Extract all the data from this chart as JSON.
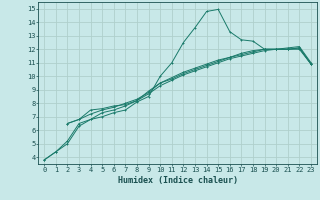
{
  "xlabel": "Humidex (Indice chaleur)",
  "ylabel": "",
  "bg_color": "#c8e8e8",
  "grid_color": "#afd0cc",
  "line_color": "#1a7a6a",
  "xlim": [
    -0.5,
    23.5
  ],
  "ylim": [
    3.5,
    15.5
  ],
  "xticks": [
    0,
    1,
    2,
    3,
    4,
    5,
    6,
    7,
    8,
    9,
    10,
    11,
    12,
    13,
    14,
    15,
    16,
    17,
    18,
    19,
    20,
    21,
    22,
    23
  ],
  "yticks": [
    4,
    5,
    6,
    7,
    8,
    9,
    10,
    11,
    12,
    13,
    14,
    15
  ],
  "line1_x": [
    0,
    1,
    2,
    3,
    4,
    5,
    6,
    7,
    8,
    9,
    10,
    11,
    12,
    13,
    14,
    15,
    16,
    17,
    18,
    19,
    20,
    21,
    22,
    23
  ],
  "line1_y": [
    3.8,
    4.4,
    5.2,
    6.5,
    6.8,
    7.0,
    7.3,
    7.5,
    8.1,
    8.5,
    10.0,
    11.0,
    12.5,
    13.6,
    14.8,
    14.95,
    13.3,
    12.7,
    12.6,
    12.0,
    12.0,
    12.1,
    12.2,
    11.0
  ],
  "line2_x": [
    0,
    1,
    2,
    3,
    4,
    5,
    6,
    7,
    8,
    9,
    10,
    11,
    12,
    13,
    14,
    15,
    16,
    17,
    18,
    19,
    20,
    21,
    22,
    23
  ],
  "line2_y": [
    3.8,
    4.4,
    5.0,
    6.3,
    6.8,
    7.3,
    7.5,
    7.8,
    8.2,
    8.7,
    9.3,
    9.7,
    10.1,
    10.4,
    10.7,
    11.0,
    11.3,
    11.5,
    11.7,
    11.9,
    12.0,
    12.0,
    12.0,
    10.9
  ],
  "line3_x": [
    2,
    3,
    4,
    5,
    6,
    7,
    8,
    9,
    10,
    11,
    12,
    13,
    14,
    15,
    16,
    17,
    18,
    19,
    20,
    21,
    22,
    23
  ],
  "line3_y": [
    6.5,
    6.8,
    7.5,
    7.6,
    7.8,
    7.9,
    8.2,
    8.9,
    9.5,
    9.8,
    10.2,
    10.5,
    10.8,
    11.1,
    11.4,
    11.7,
    11.9,
    12.0,
    12.0,
    12.0,
    12.1,
    10.9
  ],
  "line4_x": [
    2,
    3,
    4,
    5,
    6,
    7,
    8,
    9,
    10,
    11,
    12,
    13,
    14,
    15,
    16,
    17,
    18,
    19,
    20,
    21,
    22,
    23
  ],
  "line4_y": [
    6.5,
    6.8,
    7.2,
    7.5,
    7.7,
    8.0,
    8.3,
    8.8,
    9.5,
    9.9,
    10.3,
    10.6,
    10.9,
    11.2,
    11.4,
    11.6,
    11.8,
    12.0,
    12.0,
    12.0,
    12.1,
    10.9
  ],
  "tick_fontsize": 5.0,
  "xlabel_fontsize": 6.0,
  "linewidth": 0.7,
  "markersize": 2.0
}
